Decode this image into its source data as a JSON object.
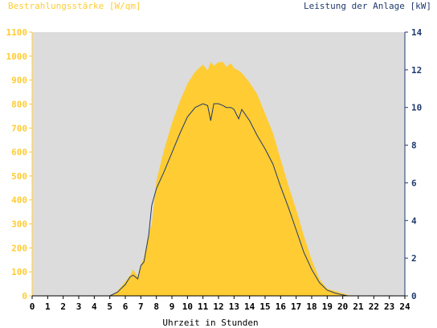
{
  "colors": {
    "background": "#ffffff",
    "plot_background": "#dcdcdc",
    "irradiance_fill": "#ffcc33",
    "irradiance_text": "#ffcc33",
    "power_line": "#1f3a6e",
    "power_text": "#1f3a6e",
    "axis_text": "#000000"
  },
  "chart_data": {
    "type": "area",
    "title_left": "Bestrahlungsstärke [W/qm]",
    "title_right": "Leistung der Anlage [kW]",
    "xlabel": "Uhrzeit in Stunden",
    "xlim": [
      0,
      24
    ],
    "x_ticks": [
      "0",
      "1",
      "2",
      "3",
      "4",
      "5",
      "6",
      "7",
      "8",
      "9",
      "10",
      "11",
      "12",
      "13",
      "14",
      "15",
      "16",
      "17",
      "18",
      "19",
      "20",
      "21",
      "22",
      "23",
      "24"
    ],
    "y_left_lim": [
      0,
      1100
    ],
    "y_left_ticks": [
      "0",
      "100",
      "200",
      "300",
      "400",
      "500",
      "600",
      "700",
      "800",
      "900",
      "1000",
      "1100"
    ],
    "y_right_lim": [
      0,
      14
    ],
    "y_right_ticks": [
      "0",
      "2",
      "4",
      "6",
      "8",
      "10",
      "12",
      "14"
    ],
    "grid": false,
    "series": [
      {
        "axis": "left",
        "kind": "area",
        "x": [
          0,
          5,
          5.5,
          6,
          6.3,
          6.5,
          6.8,
          7,
          7.2,
          7.5,
          7.7,
          8,
          8.5,
          9,
          9.5,
          10,
          10.5,
          11,
          11.3,
          11.5,
          11.7,
          12,
          12.3,
          12.5,
          12.8,
          13,
          13.3,
          13.5,
          14,
          14.5,
          15,
          15.5,
          16,
          16.5,
          17,
          17.5,
          18,
          18.5,
          19,
          19.5,
          20,
          20.3,
          20.5,
          21,
          24
        ],
        "y": [
          0,
          0,
          20,
          60,
          85,
          110,
          80,
          130,
          160,
          260,
          300,
          480,
          610,
          720,
          810,
          885,
          935,
          965,
          940,
          975,
          960,
          975,
          975,
          955,
          970,
          950,
          940,
          930,
          890,
          840,
          760,
          680,
          570,
          460,
          360,
          250,
          150,
          70,
          30,
          20,
          10,
          5,
          0,
          0,
          0
        ]
      },
      {
        "axis": "right",
        "kind": "line",
        "x": [
          0,
          5,
          5.5,
          6,
          6.3,
          6.5,
          6.8,
          7,
          7.2,
          7.5,
          7.7,
          8,
          8.5,
          9,
          9.5,
          10,
          10.5,
          11,
          11.3,
          11.5,
          11.7,
          12,
          12.3,
          12.5,
          12.8,
          13,
          13.3,
          13.5,
          14,
          14.5,
          15,
          15.5,
          16,
          16.5,
          17,
          17.5,
          18,
          18.5,
          19,
          19.5,
          20,
          20.3,
          20.5,
          21,
          24
        ],
        "y": [
          0,
          0,
          0.2,
          0.6,
          1.0,
          1.1,
          0.9,
          1.6,
          1.8,
          3.2,
          4.8,
          5.7,
          6.6,
          7.6,
          8.6,
          9.5,
          10.0,
          10.2,
          10.1,
          9.3,
          10.2,
          10.2,
          10.1,
          10.0,
          10.0,
          9.9,
          9.4,
          9.9,
          9.3,
          8.5,
          7.8,
          7.0,
          5.8,
          4.7,
          3.5,
          2.3,
          1.4,
          0.7,
          0.3,
          0.15,
          0.05,
          0,
          0,
          0,
          0
        ]
      }
    ]
  }
}
